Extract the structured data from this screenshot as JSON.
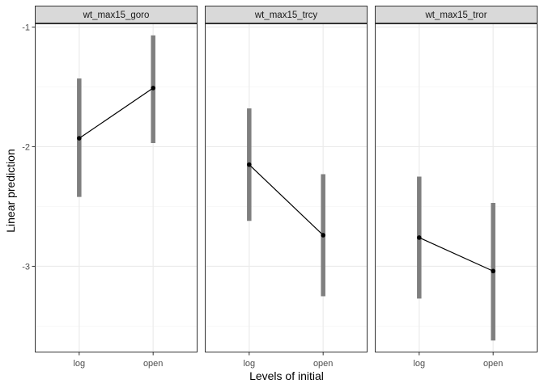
{
  "chart_data": {
    "type": "line",
    "xlabel": "Levels of initial",
    "ylabel": "Linear prediction",
    "categories": [
      "log",
      "open"
    ],
    "ylim": [
      -3.72,
      -0.97
    ],
    "yticks": [
      -1,
      -2,
      -3
    ],
    "ytick_labels": [
      "-1",
      "-2",
      "-3"
    ],
    "grid": true,
    "panels": [
      {
        "name": "wt_max15_goro",
        "values": [
          -1.93,
          -1.51
        ],
        "lower": [
          -2.42,
          -1.97
        ],
        "upper": [
          -1.43,
          -1.07
        ]
      },
      {
        "name": "wt_max15_trcy",
        "values": [
          -2.15,
          -2.74
        ],
        "lower": [
          -2.62,
          -3.25
        ],
        "upper": [
          -1.68,
          -2.23
        ]
      },
      {
        "name": "wt_max15_tror",
        "values": [
          -2.76,
          -3.04
        ],
        "lower": [
          -3.27,
          -3.62
        ],
        "upper": [
          -2.25,
          -2.47
        ]
      }
    ],
    "colors": {
      "point": "#000000",
      "line": "#000000",
      "interval": "#7f7f7f",
      "strip_fill": "#d9d9d9",
      "grid_major": "#ebebeb",
      "grid_minor": "#f4f4f4"
    }
  }
}
